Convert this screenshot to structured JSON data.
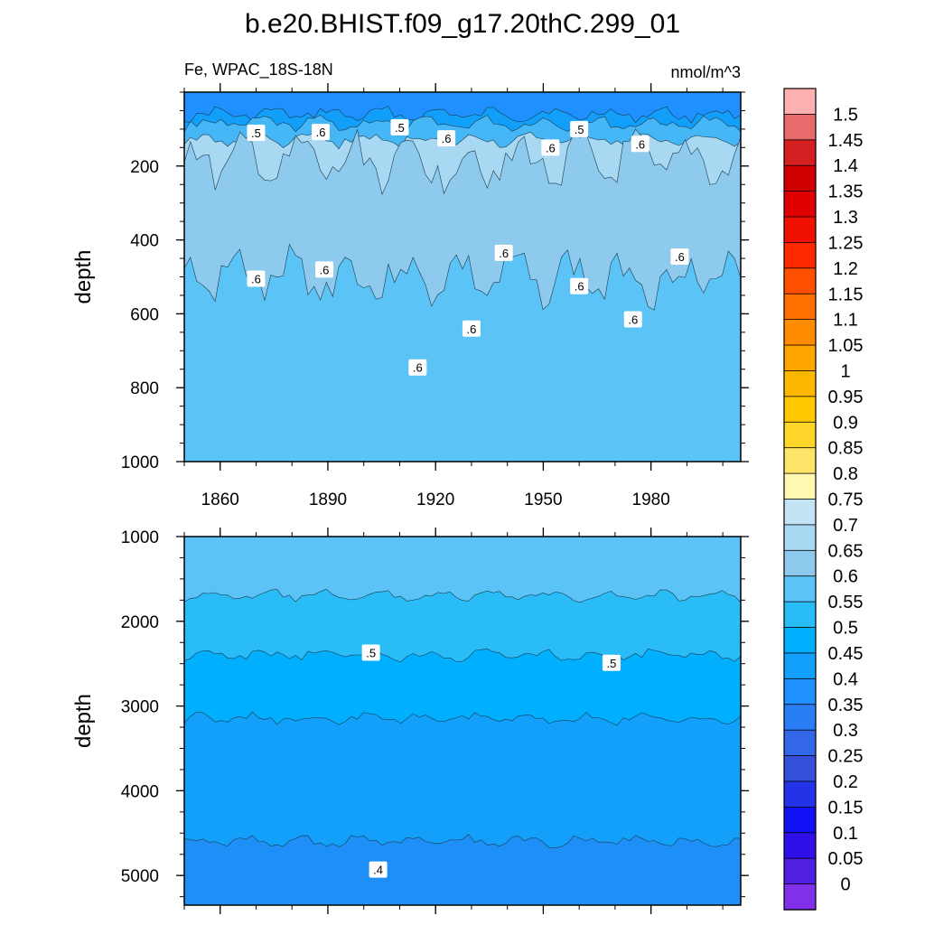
{
  "chart_data": {
    "type": "contour",
    "title": "b.e20.BHIST.f09_g17.20thC.299_01",
    "variable_label": "Fe, WPAC_18S-18N",
    "units_label": "nmol/m^3",
    "panels": [
      {
        "id": "upper",
        "ylabel": "depth",
        "xlim": [
          1850,
          2005
        ],
        "ylim": [
          0,
          1000
        ],
        "y_reversed": true,
        "x_ticks": [
          "1860",
          "1890",
          "1920",
          "1950",
          "1980"
        ],
        "y_ticks": [
          "200",
          "400",
          "600",
          "800",
          "1000"
        ],
        "fill_bands": [
          {
            "top_depth": 0,
            "level": 0.35,
            "color": "#1e90ff"
          },
          {
            "top_depth": 60,
            "level": 0.4,
            "color": "#129ffa"
          },
          {
            "top_depth": 85,
            "level": 0.5,
            "color": "#45b6f6"
          },
          {
            "top_depth": 130,
            "level": 0.6,
            "color": "#a9d9f2"
          },
          {
            "top_depth": 190,
            "level": 0.6,
            "color": "#8ec9ee"
          },
          {
            "top_depth": 500,
            "level": 0.55,
            "color": "#5bc3f5"
          }
        ],
        "contour_labels": [
          {
            "x": 1870,
            "depth": 110,
            "text": ".5"
          },
          {
            "x": 1888,
            "depth": 108,
            "text": ".6"
          },
          {
            "x": 1910,
            "depth": 95,
            "text": ".5"
          },
          {
            "x": 1923,
            "depth": 125,
            "text": ".6"
          },
          {
            "x": 1952,
            "depth": 150,
            "text": ".6"
          },
          {
            "x": 1960,
            "depth": 100,
            "text": ".5"
          },
          {
            "x": 1977,
            "depth": 140,
            "text": ".6"
          },
          {
            "x": 1870,
            "depth": 505,
            "text": ".6"
          },
          {
            "x": 1889,
            "depth": 480,
            "text": ".6"
          },
          {
            "x": 1939,
            "depth": 435,
            "text": ".6"
          },
          {
            "x": 1960,
            "depth": 525,
            "text": ".6"
          },
          {
            "x": 1988,
            "depth": 445,
            "text": ".6"
          },
          {
            "x": 1975,
            "depth": 615,
            "text": ".6"
          },
          {
            "x": 1930,
            "depth": 640,
            "text": ".6"
          },
          {
            "x": 1915,
            "depth": 745,
            "text": ".6"
          }
        ]
      },
      {
        "id": "lower",
        "ylabel": "depth",
        "xlim": [
          1850,
          2005
        ],
        "ylim": [
          1000,
          5350
        ],
        "y_reversed": true,
        "x_ticks": [],
        "y_ticks": [
          "1000",
          "2000",
          "3000",
          "4000",
          "5000"
        ],
        "fill_bands": [
          {
            "top_depth": 1000,
            "level": 0.55,
            "color": "#5bc3f5"
          },
          {
            "top_depth": 1700,
            "level": 0.5,
            "color": "#29bcf6"
          },
          {
            "top_depth": 2400,
            "level": 0.45,
            "color": "#00b0ff"
          },
          {
            "top_depth": 3150,
            "level": 0.4,
            "color": "#12a0fa"
          },
          {
            "top_depth": 4600,
            "level": 0.35,
            "color": "#1e8ff7"
          }
        ],
        "contour_labels": [
          {
            "x": 1902,
            "depth": 2370,
            "text": ".5"
          },
          {
            "x": 1969,
            "depth": 2490,
            "text": ".5"
          },
          {
            "x": 1904,
            "depth": 4930,
            "text": ".4"
          }
        ]
      }
    ],
    "colorbar": {
      "levels": [
        "1.5",
        "1.45",
        "1.4",
        "1.35",
        "1.3",
        "1.25",
        "1.2",
        "1.15",
        "1.1",
        "1.05",
        "1",
        "0.95",
        "0.9",
        "0.85",
        "0.8",
        "0.75",
        "0.7",
        "0.65",
        "0.6",
        "0.55",
        "0.5",
        "0.45",
        "0.4",
        "0.35",
        "0.3",
        "0.25",
        "0.2",
        "0.15",
        "0.1",
        "0.05",
        "0"
      ],
      "colors_top_to_bottom": [
        "#ffb0b0",
        "#e86a6a",
        "#d42020",
        "#d00000",
        "#e00000",
        "#f01000",
        "#ff2800",
        "#ff5000",
        "#ff7000",
        "#ff8c00",
        "#ffa500",
        "#ffb800",
        "#ffc800",
        "#ffd52a",
        "#ffe46a",
        "#fff8b0",
        "#c4e4f5",
        "#a9d9f2",
        "#8ec9ee",
        "#5bc3f5",
        "#29bcf6",
        "#00b0ff",
        "#12a0fa",
        "#1e90ff",
        "#2a7ef5",
        "#3268e8",
        "#3450d8",
        "#2233e8",
        "#1010f5",
        "#3010e8",
        "#5020e0",
        "#8030e8"
      ]
    }
  }
}
